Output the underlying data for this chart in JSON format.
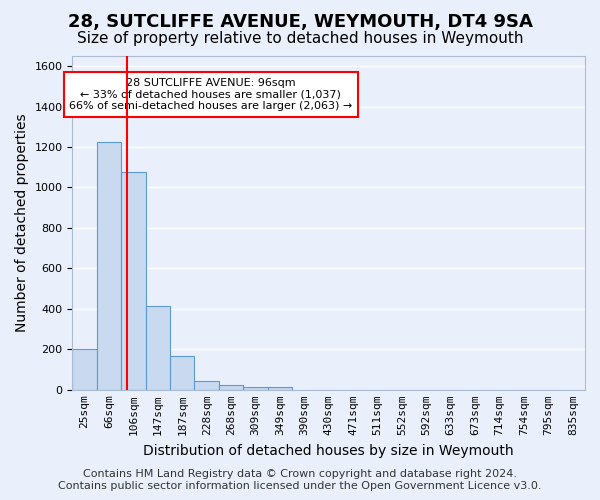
{
  "title": "28, SUTCLIFFE AVENUE, WEYMOUTH, DT4 9SA",
  "subtitle": "Size of property relative to detached houses in Weymouth",
  "xlabel": "Distribution of detached houses by size in Weymouth",
  "ylabel": "Number of detached properties",
  "bin_labels": [
    "25sqm",
    "66sqm",
    "106sqm",
    "147sqm",
    "187sqm",
    "228sqm",
    "268sqm",
    "309sqm",
    "349sqm",
    "390sqm",
    "430sqm",
    "471sqm",
    "511sqm",
    "552sqm",
    "592sqm",
    "633sqm",
    "673sqm",
    "714sqm",
    "754sqm",
    "795sqm",
    "835sqm"
  ],
  "bar_values": [
    200,
    1225,
    1075,
    415,
    165,
    45,
    25,
    15,
    15,
    0,
    0,
    0,
    0,
    0,
    0,
    0,
    0,
    0,
    0,
    0,
    0
  ],
  "bar_color": "#c9d9f0",
  "bar_edge_color": "#5b9bd5",
  "property_sqm": 96,
  "annotation_text": "28 SUTCLIFFE AVENUE: 96sqm\n← 33% of detached houses are smaller (1,037)\n66% of semi-detached houses are larger (2,063) →",
  "annotation_box_color": "white",
  "annotation_box_edge_color": "red",
  "red_line_x": 1.75,
  "ylim": [
    0,
    1650
  ],
  "yticks": [
    0,
    200,
    400,
    600,
    800,
    1000,
    1200,
    1400,
    1600
  ],
  "footer_line1": "Contains HM Land Registry data © Crown copyright and database right 2024.",
  "footer_line2": "Contains public sector information licensed under the Open Government Licence v3.0.",
  "bg_color": "#eaf0fb",
  "grid_color": "white",
  "title_fontsize": 13,
  "subtitle_fontsize": 11,
  "axis_label_fontsize": 10,
  "tick_fontsize": 8,
  "footer_fontsize": 8
}
